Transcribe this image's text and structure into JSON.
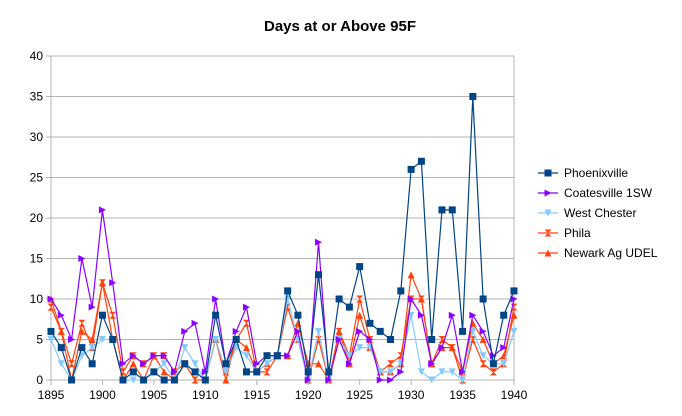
{
  "chart_data": {
    "type": "line",
    "title": "Days at or Above 95F",
    "xlabel": "",
    "ylabel": "",
    "ylim": [
      0,
      40
    ],
    "xlim": [
      1895,
      1940
    ],
    "yticks": [
      "0",
      "5",
      "10",
      "15",
      "20",
      "25",
      "30",
      "35",
      "40"
    ],
    "xticks": [
      "1895",
      "1900",
      "1905",
      "1910",
      "1915",
      "1920",
      "1925",
      "1930",
      "1935",
      "1940"
    ],
    "grid": "horizontal",
    "legend_position": "right",
    "x": [
      1895,
      1896,
      1897,
      1898,
      1899,
      1900,
      1901,
      1902,
      1903,
      1904,
      1905,
      1906,
      1907,
      1908,
      1909,
      1910,
      1911,
      1912,
      1913,
      1914,
      1915,
      1916,
      1917,
      1918,
      1919,
      1920,
      1921,
      1922,
      1923,
      1924,
      1925,
      1926,
      1927,
      1928,
      1929,
      1930,
      1931,
      1932,
      1933,
      1934,
      1935,
      1936,
      1937,
      1938,
      1939,
      1940
    ],
    "series": [
      {
        "name": "Phoenixville",
        "color": "#004586",
        "marker": "square",
        "values": [
          6,
          4,
          0,
          4,
          2,
          8,
          5,
          0,
          1,
          0,
          1,
          0,
          0,
          2,
          1,
          0,
          8,
          2,
          5,
          1,
          1,
          3,
          3,
          11,
          8,
          1,
          13,
          1,
          10,
          9,
          14,
          7,
          6,
          5,
          11,
          26,
          27,
          5,
          21,
          21,
          6,
          35,
          10,
          2,
          8,
          11
        ]
      },
      {
        "name": "Coatesville 1SW",
        "color": "#8b00ff",
        "marker": "triangle-right",
        "values": [
          10,
          8,
          5,
          15,
          9,
          21,
          12,
          2,
          3,
          2,
          3,
          3,
          1,
          6,
          7,
          1,
          10,
          2,
          6,
          9,
          2,
          3,
          3,
          3,
          6,
          0,
          17,
          0,
          5,
          2,
          6,
          5,
          0,
          0,
          1,
          10,
          8,
          2,
          4,
          8,
          1,
          8,
          6,
          3,
          4,
          10
        ]
      },
      {
        "name": "West Chester",
        "color": "#83caff",
        "marker": "triangle-down",
        "values": [
          5,
          2,
          0,
          3,
          4,
          5,
          5,
          0,
          0,
          0,
          1,
          2,
          0,
          4,
          2,
          0,
          5,
          1,
          4,
          3,
          1,
          2,
          3,
          10,
          5,
          0,
          6,
          0,
          5,
          3,
          4,
          4,
          1,
          1,
          2,
          8,
          1,
          0,
          1,
          1,
          0,
          6,
          3,
          2,
          2,
          6
        ]
      },
      {
        "name": "Phila",
        "color": "#ff420e",
        "marker": "hourglass",
        "values": [
          9,
          6,
          2,
          7,
          4,
          12,
          8,
          1,
          3,
          2,
          3,
          3,
          1,
          2,
          0,
          0,
          5,
          1,
          5,
          7,
          1,
          1,
          3,
          9,
          5,
          0,
          5,
          0,
          6,
          3,
          10,
          5,
          1,
          2,
          3,
          10,
          10,
          2,
          5,
          4,
          0,
          5,
          2,
          1,
          2,
          9
        ]
      },
      {
        "name": "Newark Ag UDEL",
        "color": "#ff420e",
        "marker": "triangle-up",
        "values": [
          10,
          6,
          0,
          6,
          5,
          12,
          5,
          0,
          2,
          0,
          3,
          1,
          0,
          2,
          1,
          0,
          5,
          0,
          5,
          4,
          1,
          2,
          3,
          3,
          7,
          2,
          2,
          0,
          6,
          2,
          8,
          4,
          1,
          1,
          2,
          13,
          10,
          2,
          4,
          4,
          1,
          7,
          5,
          2,
          3,
          8
        ]
      }
    ]
  }
}
